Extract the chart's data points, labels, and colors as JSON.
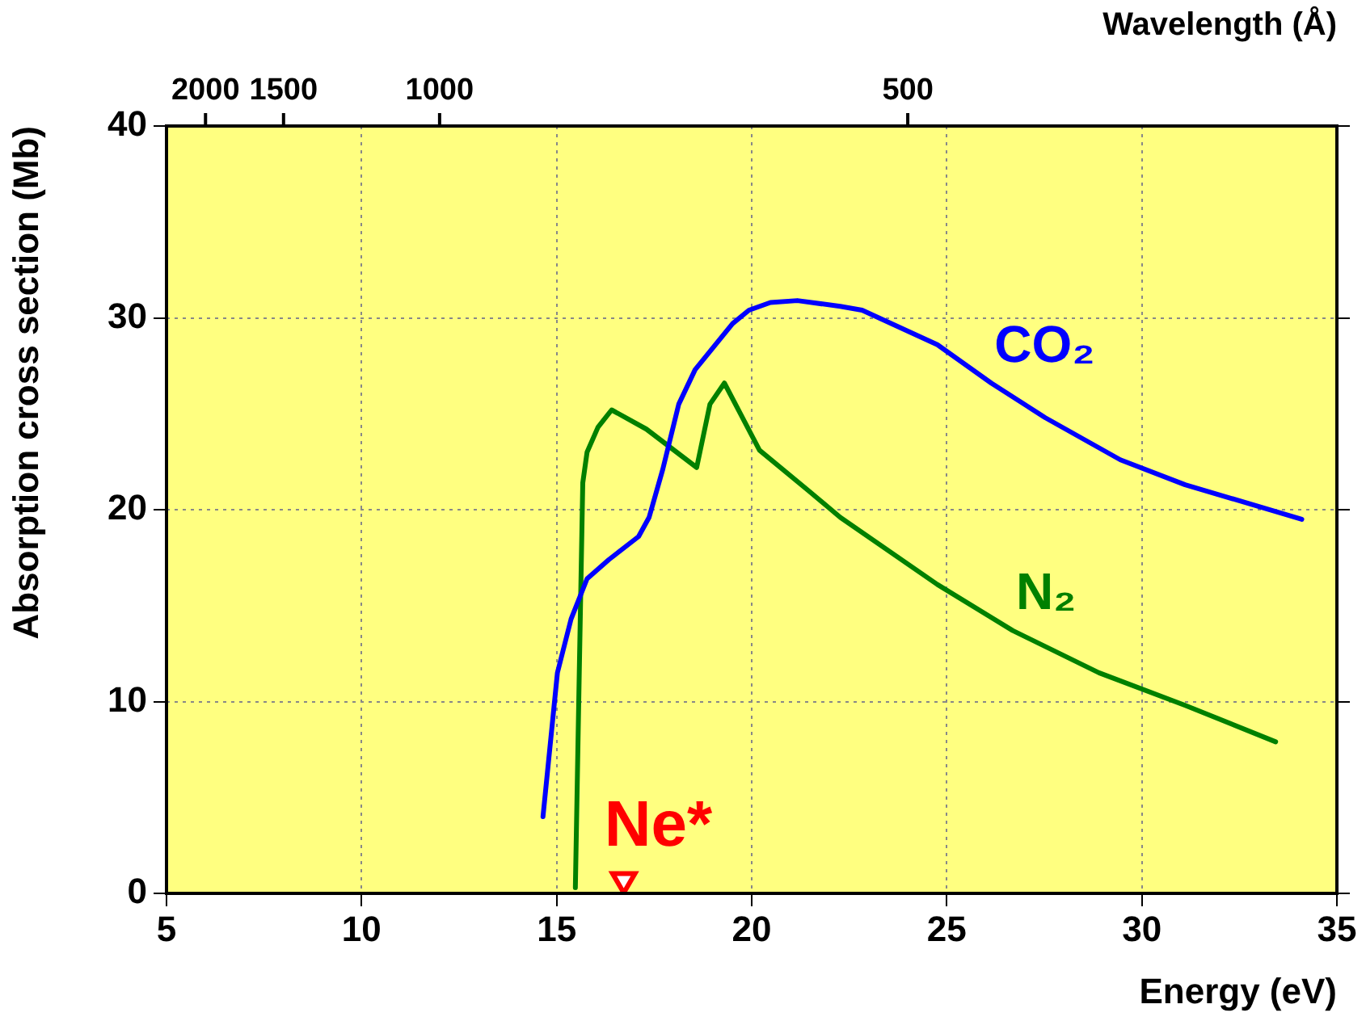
{
  "chart_data": {
    "type": "line",
    "xlabel": "Energy (eV)",
    "ylabel": "Absorption cross section (Mb)",
    "x2label": "Wavelength (Å)",
    "xlim": [
      5,
      35
    ],
    "xticks": [
      5,
      10,
      15,
      20,
      25,
      30,
      35
    ],
    "ylim": [
      0,
      40
    ],
    "yticks": [
      0,
      10,
      20,
      30,
      40
    ],
    "annotations": [
      "2000",
      "1500",
      "1000",
      "500"
    ],
    "grid": true,
    "legend": false,
    "marker": "none",
    "line_style": "solid",
    "series": [
      {
        "name": "CO₂",
        "color": "#0000ff",
        "x": [
          14.65,
          15.02,
          15.37,
          15.78,
          16.34,
          17.1,
          17.37,
          17.72,
          18.13,
          18.55,
          19.51,
          19.93,
          20.48,
          21.17,
          22.27,
          22.83,
          24.76,
          26.14,
          27.52,
          29.45,
          31.11,
          34.1
        ],
        "values": [
          4.0,
          11.5,
          14.3,
          16.4,
          17.4,
          18.6,
          19.6,
          22.1,
          25.5,
          27.3,
          29.7,
          30.4,
          30.8,
          30.9,
          30.6,
          30.4,
          28.6,
          26.6,
          24.8,
          22.6,
          21.3,
          19.5
        ]
      },
      {
        "name": "N₂",
        "color": "#008000",
        "x": [
          15.48,
          15.58,
          15.67,
          15.78,
          16.06,
          16.41,
          17.3,
          18.59,
          18.93,
          19.3,
          20.2,
          21.45,
          22.27,
          24.76,
          26.69,
          28.9,
          31.11,
          33.43
        ],
        "values": [
          0.3,
          11.5,
          21.4,
          23.0,
          24.3,
          25.2,
          24.2,
          22.2,
          25.5,
          26.6,
          23.1,
          21.0,
          19.6,
          16.1,
          13.7,
          11.5,
          9.8,
          7.9
        ]
      },
      {
        "name": "Ne*",
        "type": "scatter",
        "marker": "triangle",
        "color": "#ff0000",
        "x": [
          16.72
        ],
        "values": [
          0.7
        ]
      }
    ]
  }
}
